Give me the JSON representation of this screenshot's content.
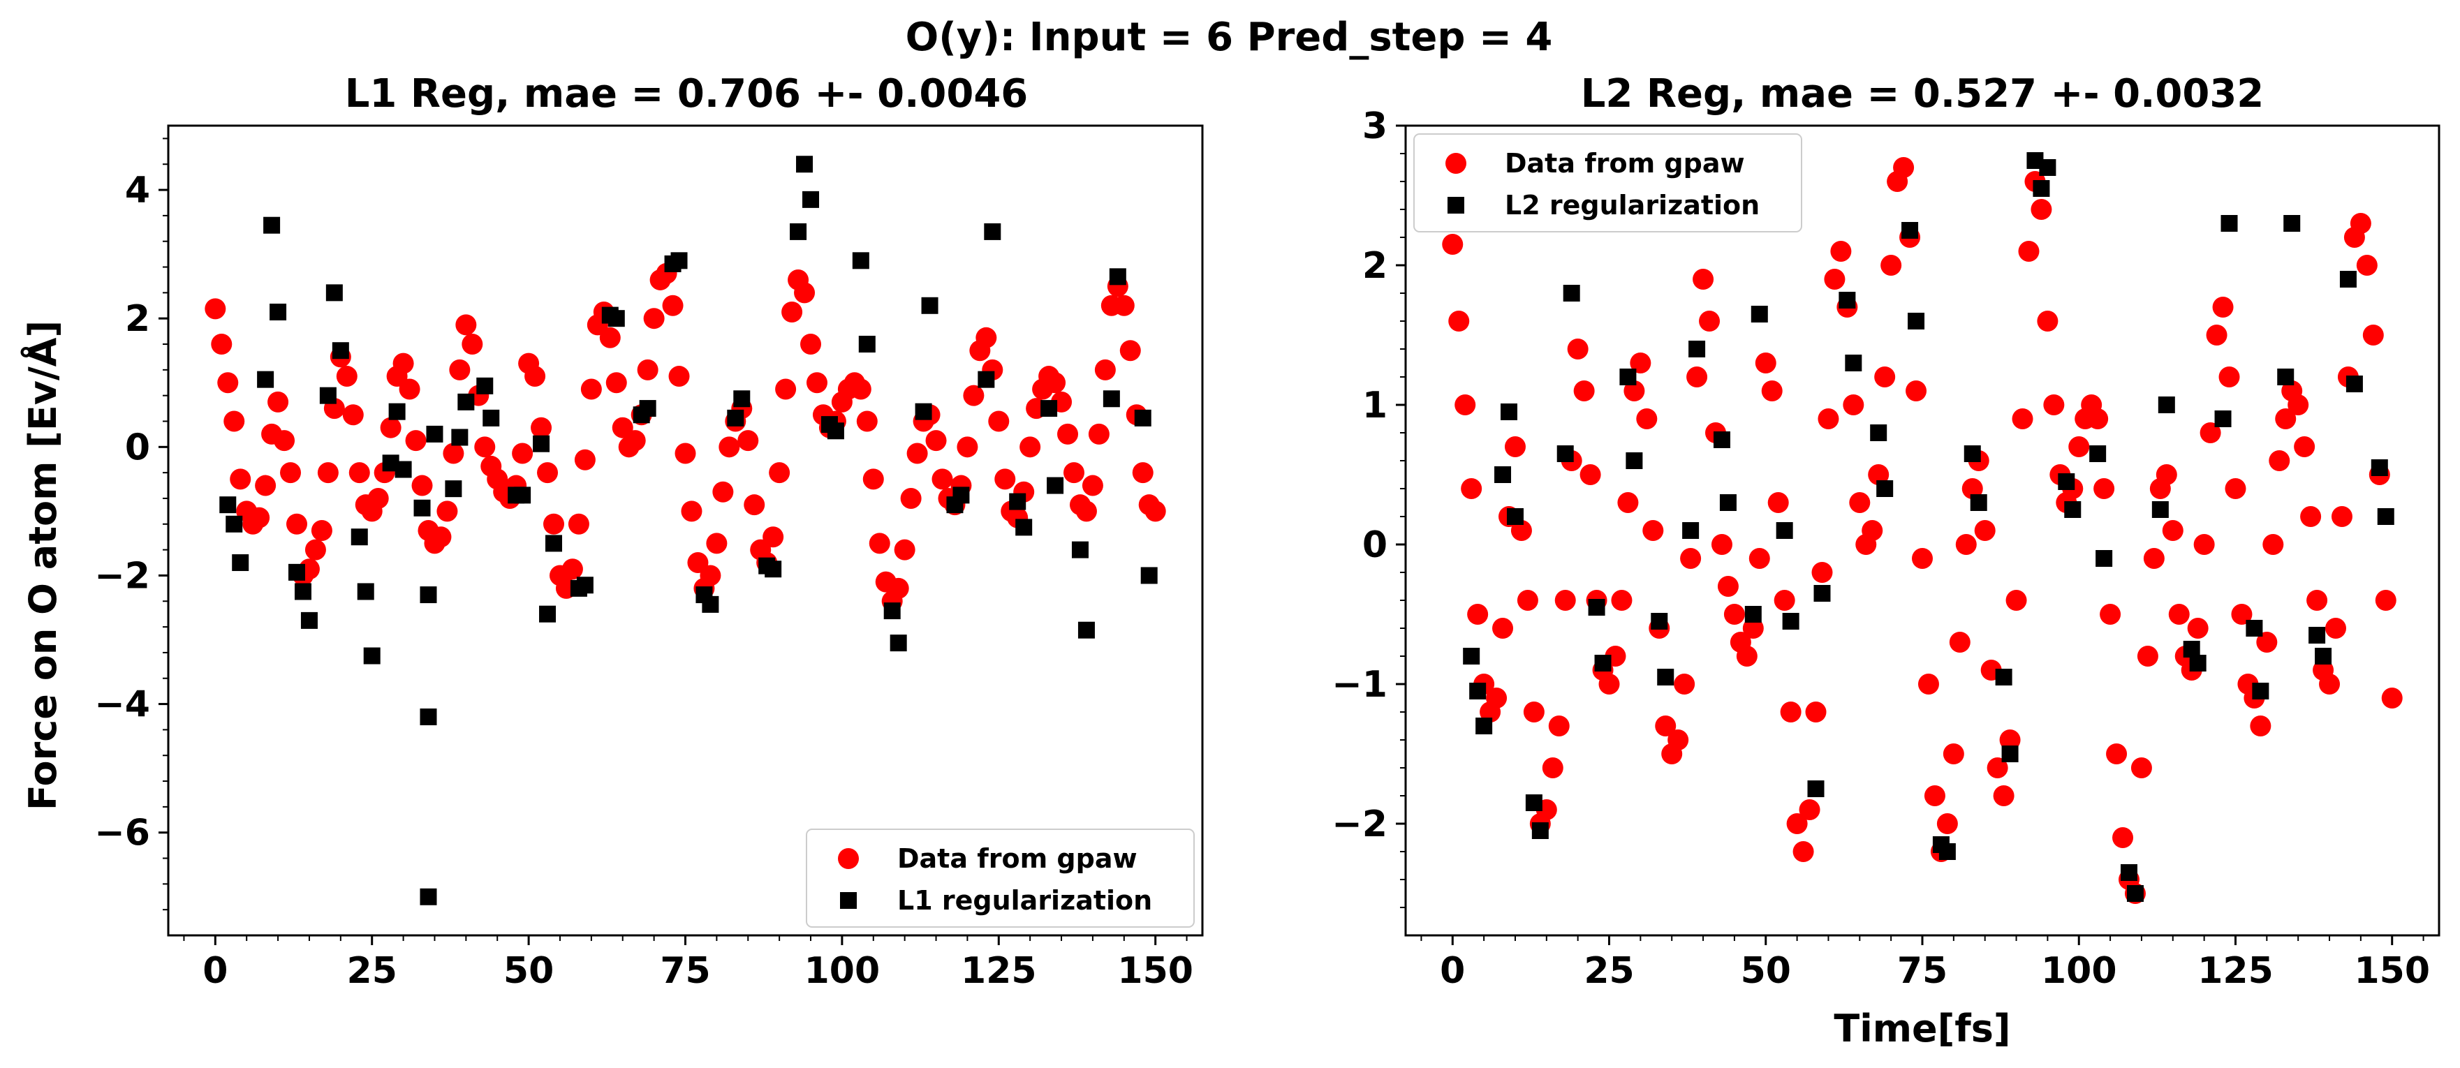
{
  "figure": {
    "suptitle": "O(y): Input = 6 Pred_step = 4"
  },
  "chart_data": [
    {
      "type": "scatter",
      "title": "L1 Reg, mae = 0.706 +- 0.0046",
      "xlabel": "",
      "ylabel": "Force on O atom [Ev/Å]",
      "xlim": [
        -7.5,
        157.5
      ],
      "ylim": [
        -7.6,
        5.0
      ],
      "xticks": [
        0,
        25,
        50,
        75,
        100,
        125,
        150
      ],
      "xtick_labels": [
        "0",
        "25",
        "50",
        "75",
        "100",
        "125",
        "150"
      ],
      "yticks": [
        -6,
        -4,
        -2,
        0,
        2,
        4
      ],
      "ytick_labels": [
        "−6",
        "−4",
        "−2",
        "0",
        "2",
        "4"
      ],
      "grid": false,
      "legend": "lower right",
      "series": [
        {
          "name": "Data from gpaw",
          "color": "#ff0000",
          "marker": "circle",
          "x": [
            0,
            1,
            2,
            3,
            4,
            5,
            6,
            7,
            8,
            9,
            10,
            11,
            12,
            13,
            14,
            15,
            16,
            17,
            18,
            19,
            20,
            21,
            22,
            23,
            24,
            25,
            26,
            27,
            28,
            29,
            30,
            31,
            32,
            33,
            34,
            35,
            36,
            37,
            38,
            39,
            40,
            41,
            42,
            43,
            44,
            45,
            46,
            47,
            48,
            49,
            50,
            51,
            52,
            53,
            54,
            55,
            56,
            57,
            58,
            59,
            60,
            61,
            62,
            63,
            64,
            65,
            66,
            67,
            68,
            69,
            70,
            71,
            72,
            73,
            74,
            75,
            76,
            77,
            78,
            79,
            80,
            81,
            82,
            83,
            84,
            85,
            86,
            87,
            88,
            89,
            90,
            91,
            92,
            93,
            94,
            95,
            96,
            97,
            98,
            99,
            100,
            101,
            102,
            103,
            104,
            105,
            106,
            107,
            108,
            109,
            110,
            111,
            112,
            113,
            114,
            115,
            116,
            117,
            118,
            119,
            120,
            121,
            122,
            123,
            124,
            125,
            126,
            127,
            128,
            129,
            130,
            131,
            132,
            133,
            134,
            135,
            136,
            137,
            138,
            139,
            140,
            141,
            142,
            143,
            144,
            145,
            146,
            147,
            148,
            149,
            150
          ],
          "y": [
            2.15,
            1.6,
            1.0,
            0.4,
            -0.5,
            -1.0,
            -1.2,
            -1.1,
            -0.6,
            0.2,
            0.7,
            0.1,
            -0.4,
            -1.2,
            -2.0,
            -1.9,
            -1.6,
            -1.3,
            -0.4,
            0.6,
            1.4,
            1.1,
            0.5,
            -0.4,
            -0.9,
            -1.0,
            -0.8,
            -0.4,
            0.3,
            1.1,
            1.3,
            0.9,
            0.1,
            -0.6,
            -1.3,
            -1.5,
            -1.4,
            -1.0,
            -0.1,
            1.2,
            1.9,
            1.6,
            0.8,
            0.0,
            -0.3,
            -0.5,
            -0.7,
            -0.8,
            -0.6,
            -0.1,
            1.3,
            1.1,
            0.3,
            -0.4,
            -1.2,
            -2.0,
            -2.2,
            -1.9,
            -1.2,
            -0.2,
            0.9,
            1.9,
            2.1,
            1.7,
            1.0,
            0.3,
            0.0,
            0.1,
            0.5,
            1.2,
            2.0,
            2.6,
            2.7,
            2.2,
            1.1,
            -0.1,
            -1.0,
            -1.8,
            -2.2,
            -2.0,
            -1.5,
            -0.7,
            0.0,
            0.4,
            0.6,
            0.1,
            -0.9,
            -1.6,
            -1.8,
            -1.4,
            -0.4,
            0.9,
            2.1,
            2.6,
            2.4,
            1.6,
            1.0,
            0.5,
            0.3,
            0.4,
            0.7,
            0.9,
            1.0,
            0.9,
            0.4,
            -0.5,
            -1.5,
            -2.1,
            -2.4,
            -2.2,
            -1.6,
            -0.8,
            -0.1,
            0.4,
            0.5,
            0.1,
            -0.5,
            -0.8,
            -0.9,
            -0.6,
            0.0,
            0.8,
            1.5,
            1.7,
            1.2,
            0.4,
            -0.5,
            -1.0,
            -1.1,
            -0.7,
            0.0,
            0.6,
            0.9,
            1.1,
            1.0,
            0.7,
            0.2,
            -0.4,
            -0.9,
            -1.0,
            -0.6,
            0.2,
            1.2,
            2.2,
            2.5,
            2.2,
            1.5,
            0.5,
            -0.4,
            -0.9,
            -1.0
          ]
        },
        {
          "name": "L1 regularization",
          "color": "#000000",
          "marker": "square",
          "x": [
            2,
            3,
            4,
            8,
            9,
            10,
            13,
            14,
            15,
            18,
            19,
            20,
            23,
            24,
            25,
            28,
            29,
            30,
            33,
            34,
            34,
            34,
            35,
            38,
            39,
            40,
            43,
            44,
            48,
            49,
            52,
            53,
            54,
            58,
            59,
            63,
            64,
            68,
            69,
            73,
            74,
            78,
            79,
            83,
            84,
            88,
            89,
            93,
            94,
            95,
            98,
            99,
            103,
            104,
            108,
            109,
            113,
            114,
            118,
            119,
            123,
            124,
            128,
            129,
            133,
            134,
            138,
            139,
            143,
            144,
            148,
            149
          ],
          "y": [
            -0.9,
            -1.2,
            -1.8,
            1.05,
            3.45,
            2.1,
            -1.95,
            -2.25,
            -2.7,
            0.8,
            2.4,
            1.5,
            -1.4,
            -2.25,
            -3.25,
            -0.25,
            0.55,
            -0.35,
            -0.95,
            -2.3,
            -4.2,
            -7.0,
            0.2,
            -0.65,
            0.15,
            0.7,
            0.95,
            0.45,
            -0.75,
            -0.75,
            0.05,
            -2.6,
            -1.5,
            -2.2,
            -2.15,
            2.05,
            2.0,
            0.5,
            0.6,
            2.85,
            2.9,
            -2.3,
            -2.45,
            0.45,
            0.75,
            -1.85,
            -1.9,
            3.35,
            4.4,
            3.85,
            0.35,
            0.25,
            2.9,
            1.6,
            -2.55,
            -3.05,
            0.55,
            2.2,
            -0.9,
            -0.75,
            1.05,
            3.35,
            -0.85,
            -1.25,
            0.6,
            -0.6,
            -1.6,
            -2.85,
            0.75,
            2.65,
            0.45,
            -2.0
          ]
        }
      ]
    },
    {
      "type": "scatter",
      "title": "L2 Reg, mae = 0.527 +- 0.0032",
      "xlabel": "Time[fs]",
      "ylabel": "",
      "xlim": [
        -7.5,
        157.5
      ],
      "ylim": [
        -2.8,
        3.0
      ],
      "xticks": [
        0,
        25,
        50,
        75,
        100,
        125,
        150
      ],
      "xtick_labels": [
        "0",
        "25",
        "50",
        "75",
        "100",
        "125",
        "150"
      ],
      "yticks": [
        -2,
        -1,
        0,
        1,
        2,
        3
      ],
      "ytick_labels": [
        "−2",
        "−1",
        "0",
        "1",
        "2",
        "3"
      ],
      "grid": false,
      "legend": "upper left",
      "series": [
        {
          "name": "Data from gpaw",
          "color": "#ff0000",
          "marker": "circle",
          "x": [
            0,
            1,
            2,
            3,
            4,
            5,
            6,
            7,
            8,
            9,
            10,
            11,
            12,
            13,
            14,
            15,
            16,
            17,
            18,
            19,
            20,
            21,
            22,
            23,
            24,
            25,
            26,
            27,
            28,
            29,
            30,
            31,
            32,
            33,
            34,
            35,
            36,
            37,
            38,
            39,
            40,
            41,
            42,
            43,
            44,
            45,
            46,
            47,
            48,
            49,
            50,
            51,
            52,
            53,
            54,
            55,
            56,
            57,
            58,
            59,
            60,
            61,
            62,
            63,
            64,
            65,
            66,
            67,
            68,
            69,
            70,
            71,
            72,
            73,
            74,
            75,
            76,
            77,
            78,
            79,
            80,
            81,
            82,
            83,
            84,
            85,
            86,
            87,
            88,
            89,
            90,
            91,
            92,
            93,
            94,
            95,
            96,
            97,
            98,
            99,
            100,
            101,
            102,
            103,
            104,
            105,
            106,
            107,
            108,
            109,
            110,
            111,
            112,
            113,
            114,
            115,
            116,
            117,
            118,
            119,
            120,
            121,
            122,
            123,
            124,
            125,
            126,
            127,
            128,
            129,
            130,
            131,
            132,
            133,
            134,
            135,
            136,
            137,
            138,
            139,
            140,
            141,
            142,
            143,
            144,
            145,
            146,
            147,
            148,
            149,
            150
          ],
          "y": [
            2.15,
            1.6,
            1.0,
            0.4,
            -0.5,
            -1.0,
            -1.2,
            -1.1,
            -0.6,
            0.2,
            0.7,
            0.1,
            -0.4,
            -1.2,
            -2.0,
            -1.9,
            -1.6,
            -1.3,
            -0.4,
            0.6,
            1.4,
            1.1,
            0.5,
            -0.4,
            -0.9,
            -1.0,
            -0.8,
            -0.4,
            0.3,
            1.1,
            1.3,
            0.9,
            0.1,
            -0.6,
            -1.3,
            -1.5,
            -1.4,
            -1.0,
            -0.1,
            1.2,
            1.9,
            1.6,
            0.8,
            0.0,
            -0.3,
            -0.5,
            -0.7,
            -0.8,
            -0.6,
            -0.1,
            1.3,
            1.1,
            0.3,
            -0.4,
            -1.2,
            -2.0,
            -2.2,
            -1.9,
            -1.2,
            -0.2,
            0.9,
            1.9,
            2.1,
            1.7,
            1.0,
            0.3,
            0.0,
            0.1,
            0.5,
            1.2,
            2.0,
            2.6,
            2.7,
            2.2,
            1.1,
            -0.1,
            -1.0,
            -1.8,
            -2.2,
            -2.0,
            -1.5,
            -0.7,
            0.0,
            0.4,
            0.6,
            0.1,
            -0.9,
            -1.6,
            -1.8,
            -1.4,
            -0.4,
            0.9,
            2.1,
            2.6,
            2.4,
            1.6,
            1.0,
            0.5,
            0.3,
            0.4,
            0.7,
            0.9,
            1.0,
            0.9,
            0.4,
            -0.5,
            -1.5,
            -2.1,
            -2.4,
            -2.5,
            -1.6,
            -0.8,
            -0.1,
            0.4,
            0.5,
            0.1,
            -0.5,
            -0.8,
            -0.9,
            -0.6,
            0.0,
            0.8,
            1.5,
            1.7,
            1.2,
            0.4,
            -0.5,
            -1.0,
            -1.1,
            -1.3,
            -0.7,
            0.0,
            0.6,
            0.9,
            1.1,
            1.0,
            0.7,
            0.2,
            -0.4,
            -0.9,
            -1.0,
            -0.6,
            0.2,
            1.2,
            2.2,
            2.3,
            2.0,
            1.5,
            0.5,
            -0.4,
            -1.1
          ]
        },
        {
          "name": "L2 regularization",
          "color": "#000000",
          "marker": "square",
          "x": [
            3,
            4,
            5,
            8,
            9,
            10,
            13,
            14,
            18,
            19,
            23,
            24,
            28,
            29,
            33,
            34,
            38,
            39,
            43,
            44,
            48,
            49,
            53,
            54,
            58,
            59,
            63,
            64,
            68,
            69,
            73,
            74,
            78,
            79,
            83,
            84,
            88,
            89,
            93,
            94,
            95,
            98,
            99,
            103,
            104,
            108,
            109,
            113,
            114,
            118,
            119,
            123,
            124,
            128,
            129,
            133,
            134,
            138,
            139,
            143,
            144,
            148,
            149
          ],
          "y": [
            -0.8,
            -1.05,
            -1.3,
            0.5,
            0.95,
            0.2,
            -1.85,
            -2.05,
            0.65,
            1.8,
            -0.45,
            -0.85,
            1.2,
            0.6,
            -0.55,
            -0.95,
            0.1,
            1.4,
            0.75,
            0.3,
            -0.5,
            1.65,
            0.1,
            -0.55,
            -1.75,
            -0.35,
            1.75,
            1.3,
            0.8,
            0.4,
            2.25,
            1.6,
            -2.15,
            -2.2,
            0.65,
            0.3,
            -0.95,
            -1.5,
            2.75,
            2.55,
            2.7,
            0.45,
            0.25,
            0.65,
            -0.1,
            -2.35,
            -2.5,
            0.25,
            1.0,
            -0.75,
            -0.85,
            0.9,
            2.3,
            -0.6,
            -1.05,
            1.2,
            2.3,
            -0.65,
            -0.8,
            1.9,
            1.15,
            0.55,
            0.2
          ]
        }
      ]
    }
  ]
}
